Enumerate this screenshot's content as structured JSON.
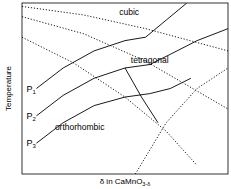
{
  "chart_data": {
    "type": "line",
    "x_label": "δ in CaMnO3-δ",
    "y_label": "Temperature",
    "xlim": [
      0,
      1
    ],
    "ylim": [
      0,
      1
    ],
    "tick_labels": false,
    "grid": false,
    "color": "#000000",
    "series": [
      {
        "name": "P1",
        "line_style": "solid",
        "x": [
          0.07,
          0.2,
          0.35,
          0.5,
          0.6,
          0.7,
          0.8
        ],
        "values": [
          0.5,
          0.62,
          0.72,
          0.78,
          0.8,
          0.9,
          1.0
        ]
      },
      {
        "name": "P2",
        "line_style": "solid",
        "x": [
          0.07,
          0.2,
          0.35,
          0.5,
          0.62,
          0.72,
          0.85,
          1.0
        ],
        "values": [
          0.34,
          0.46,
          0.56,
          0.62,
          0.64,
          0.7,
          0.78,
          0.85
        ]
      },
      {
        "name": "P3",
        "line_style": "solid",
        "x": [
          0.07,
          0.2,
          0.35,
          0.5,
          0.62,
          0.72,
          0.82
        ],
        "values": [
          0.18,
          0.3,
          0.4,
          0.45,
          0.47,
          0.5,
          0.56
        ]
      },
      {
        "line_style": "solid",
        "x": [
          0.5,
          0.58,
          0.66
        ],
        "values": [
          0.62,
          0.45,
          0.3
        ]
      },
      {
        "line_style": "dotted",
        "x": [
          0,
          0.3,
          0.6,
          1.0
        ],
        "values": [
          0.98,
          0.93,
          0.85,
          0.72
        ]
      },
      {
        "line_style": "dotted",
        "x": [
          0,
          0.3,
          0.6,
          0.9,
          1.0
        ],
        "values": [
          0.92,
          0.82,
          0.66,
          0.45,
          0.38
        ]
      },
      {
        "line_style": "dotted",
        "x": [
          0,
          0.25,
          0.5,
          0.7,
          0.85
        ],
        "values": [
          0.8,
          0.65,
          0.45,
          0.25,
          0.05
        ]
      },
      {
        "line_style": "dotted",
        "x": [
          0.55,
          0.7,
          0.85,
          1.0
        ],
        "values": [
          0.0,
          0.3,
          0.5,
          0.62
        ]
      }
    ],
    "annotations": [
      {
        "text": "cubic",
        "x": 0.52,
        "y": 0.93
      },
      {
        "text": "tetragonal",
        "x": 0.62,
        "y": 0.65
      },
      {
        "text": "orthorhombic",
        "x": 0.28,
        "y": 0.26
      }
    ]
  }
}
